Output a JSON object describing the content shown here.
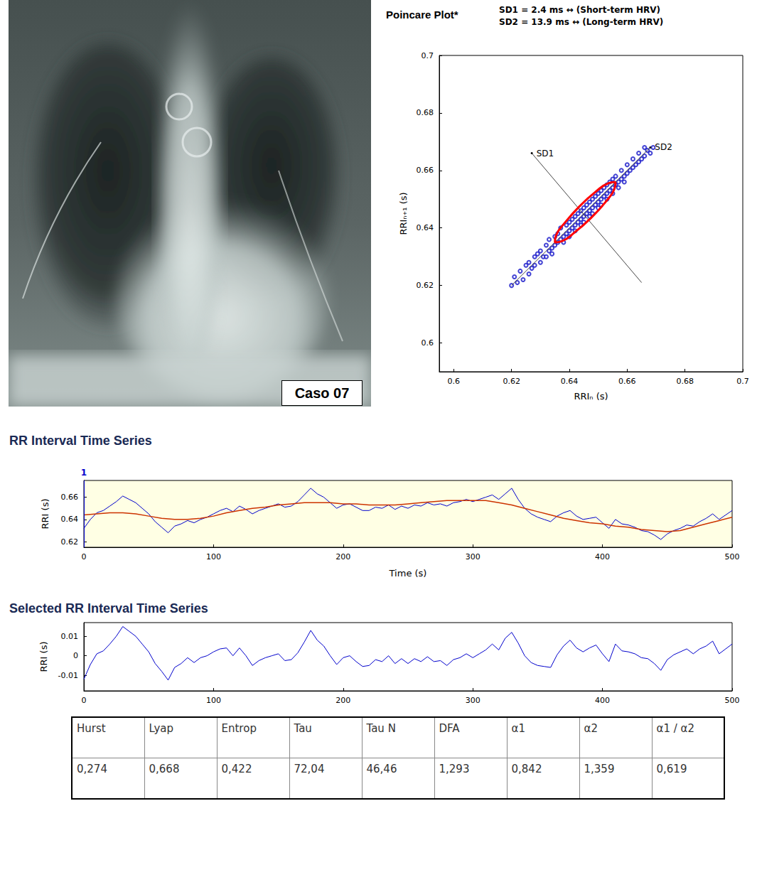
{
  "image": {
    "label": "Caso 07"
  },
  "chart_data": [
    {
      "type": "scatter",
      "title": "Poincare Plot*",
      "annotations": [
        "SD1 = 2.4 ms ↔ (Short-term HRV)",
        "SD2 = 13.9 ms ↔ (Long-term HRV)"
      ],
      "x_label": "RRIₙ (s)",
      "y_label": "RRIₙ₊₁ (s)",
      "x": [
        0.62,
        0.622,
        0.621,
        0.623,
        0.624,
        0.625,
        0.626,
        0.626,
        0.627,
        0.628,
        0.628,
        0.629,
        0.63,
        0.63,
        0.631,
        0.632,
        0.632,
        0.633,
        0.633,
        0.634,
        0.634,
        0.635,
        0.635,
        0.636,
        0.636,
        0.637,
        0.637,
        0.638,
        0.638,
        0.639,
        0.639,
        0.64,
        0.64,
        0.64,
        0.641,
        0.641,
        0.642,
        0.642,
        0.642,
        0.643,
        0.643,
        0.644,
        0.644,
        0.644,
        0.645,
        0.645,
        0.645,
        0.646,
        0.646,
        0.647,
        0.647,
        0.647,
        0.648,
        0.648,
        0.648,
        0.649,
        0.649,
        0.65,
        0.65,
        0.65,
        0.651,
        0.651,
        0.651,
        0.652,
        0.652,
        0.653,
        0.653,
        0.653,
        0.654,
        0.654,
        0.655,
        0.655,
        0.655,
        0.656,
        0.656,
        0.657,
        0.657,
        0.658,
        0.658,
        0.659,
        0.659,
        0.66,
        0.66,
        0.661,
        0.662,
        0.662,
        0.663,
        0.664,
        0.664,
        0.665,
        0.666,
        0.667,
        0.668,
        0.669,
        0.666
      ],
      "values": [
        0.62,
        0.621,
        0.623,
        0.625,
        0.622,
        0.627,
        0.624,
        0.628,
        0.626,
        0.63,
        0.627,
        0.631,
        0.628,
        0.632,
        0.63,
        0.634,
        0.63,
        0.632,
        0.636,
        0.633,
        0.631,
        0.637,
        0.634,
        0.638,
        0.635,
        0.636,
        0.64,
        0.637,
        0.635,
        0.641,
        0.638,
        0.642,
        0.639,
        0.637,
        0.64,
        0.643,
        0.641,
        0.644,
        0.639,
        0.642,
        0.645,
        0.643,
        0.641,
        0.646,
        0.644,
        0.647,
        0.642,
        0.645,
        0.648,
        0.646,
        0.644,
        0.649,
        0.647,
        0.65,
        0.645,
        0.648,
        0.651,
        0.649,
        0.647,
        0.652,
        0.65,
        0.653,
        0.648,
        0.651,
        0.654,
        0.652,
        0.65,
        0.655,
        0.653,
        0.656,
        0.654,
        0.652,
        0.657,
        0.655,
        0.658,
        0.656,
        0.654,
        0.657,
        0.66,
        0.658,
        0.656,
        0.659,
        0.662,
        0.66,
        0.661,
        0.664,
        0.662,
        0.663,
        0.666,
        0.664,
        0.665,
        0.667,
        0.666,
        0.668,
        0.668
      ],
      "color": "#1414c8",
      "marker": "circle",
      "xlim": [
        0.595,
        0.7
      ],
      "xticks": [
        0.6,
        0.62,
        0.64,
        0.66,
        0.68,
        0.7
      ],
      "ylim": [
        0.59,
        0.7
      ],
      "yticks": [
        0.6,
        0.62,
        0.64,
        0.66,
        0.68,
        0.7
      ],
      "grid": false,
      "ellipse": {
        "color": "#ff0000",
        "x": [
          0.656,
          0.6536,
          0.649,
          0.6435,
          0.6386,
          0.6354,
          0.635,
          0.6374,
          0.642,
          0.6475,
          0.6525,
          0.6556,
          0.656
        ],
        "y": [
          0.656,
          0.6556,
          0.6525,
          0.6475,
          0.642,
          0.6374,
          0.635,
          0.6354,
          0.6386,
          0.6435,
          0.649,
          0.6536,
          0.656
        ]
      },
      "reference_lines": [
        {
          "label": "SD1",
          "x": [
            0.627,
            0.665
          ],
          "y": [
            0.666,
            0.621
          ]
        },
        {
          "label": "SD2",
          "x": [
            0.62,
            0.668
          ],
          "y": [
            0.62,
            0.668
          ]
        }
      ]
    },
    {
      "type": "line",
      "title": "RR Interval Time Series",
      "x_label": "Time (s)",
      "y_label": "RRI (s)",
      "series": [
        {
          "color": "#0000cc",
          "x": [
            0,
            5,
            10,
            15,
            20,
            25,
            30,
            35,
            40,
            45,
            50,
            55,
            60,
            65,
            70,
            75,
            80,
            85,
            90,
            95,
            100,
            105,
            110,
            115,
            120,
            125,
            130,
            135,
            140,
            145,
            150,
            155,
            160,
            165,
            170,
            175,
            180,
            185,
            190,
            195,
            200,
            205,
            210,
            215,
            220,
            225,
            230,
            235,
            240,
            245,
            250,
            255,
            260,
            265,
            270,
            275,
            280,
            285,
            290,
            295,
            300,
            305,
            310,
            315,
            320,
            325,
            330,
            335,
            340,
            345,
            350,
            355,
            360,
            365,
            370,
            375,
            380,
            385,
            390,
            395,
            400,
            405,
            410,
            415,
            420,
            425,
            430,
            435,
            440,
            445,
            450,
            455,
            460,
            465,
            470,
            475,
            480,
            485,
            490,
            495,
            500
          ],
          "values": [
            0.632,
            0.64,
            0.646,
            0.648,
            0.652,
            0.656,
            0.661,
            0.658,
            0.655,
            0.65,
            0.645,
            0.638,
            0.633,
            0.628,
            0.634,
            0.636,
            0.639,
            0.637,
            0.64,
            0.642,
            0.645,
            0.648,
            0.65,
            0.647,
            0.652,
            0.649,
            0.645,
            0.648,
            0.65,
            0.652,
            0.654,
            0.651,
            0.652,
            0.656,
            0.662,
            0.668,
            0.663,
            0.66,
            0.655,
            0.65,
            0.653,
            0.654,
            0.651,
            0.648,
            0.648,
            0.651,
            0.65,
            0.653,
            0.649,
            0.652,
            0.65,
            0.653,
            0.652,
            0.655,
            0.653,
            0.654,
            0.652,
            0.655,
            0.656,
            0.658,
            0.656,
            0.658,
            0.66,
            0.662,
            0.658,
            0.663,
            0.668,
            0.658,
            0.65,
            0.645,
            0.642,
            0.64,
            0.638,
            0.643,
            0.646,
            0.648,
            0.643,
            0.64,
            0.641,
            0.642,
            0.637,
            0.632,
            0.64,
            0.636,
            0.635,
            0.633,
            0.63,
            0.629,
            0.626,
            0.622,
            0.627,
            0.63,
            0.632,
            0.635,
            0.634,
            0.638,
            0.641,
            0.645,
            0.64,
            0.644,
            0.648
          ]
        },
        {
          "color": "#cc3300",
          "x": [
            0,
            10,
            20,
            30,
            40,
            50,
            60,
            70,
            80,
            90,
            100,
            110,
            120,
            130,
            140,
            150,
            160,
            170,
            180,
            190,
            200,
            210,
            220,
            230,
            240,
            250,
            260,
            270,
            280,
            290,
            300,
            310,
            320,
            330,
            340,
            350,
            360,
            370,
            380,
            390,
            400,
            410,
            420,
            430,
            440,
            450,
            460,
            470,
            480,
            490,
            500
          ],
          "values": [
            0.644,
            0.645,
            0.646,
            0.646,
            0.645,
            0.643,
            0.641,
            0.64,
            0.64,
            0.641,
            0.643,
            0.646,
            0.648,
            0.65,
            0.651,
            0.653,
            0.654,
            0.655,
            0.655,
            0.655,
            0.654,
            0.654,
            0.653,
            0.653,
            0.653,
            0.654,
            0.655,
            0.656,
            0.657,
            0.657,
            0.657,
            0.657,
            0.655,
            0.653,
            0.65,
            0.647,
            0.644,
            0.641,
            0.639,
            0.637,
            0.636,
            0.634,
            0.633,
            0.631,
            0.63,
            0.629,
            0.63,
            0.633,
            0.636,
            0.639,
            0.642
          ]
        }
      ],
      "markers": [
        {
          "x": 0,
          "label": "1"
        }
      ],
      "xlim": [
        0,
        500
      ],
      "xticks": [
        0,
        100,
        200,
        300,
        400,
        500
      ],
      "ylim": [
        0.615,
        0.675
      ],
      "yticks": [
        0.62,
        0.64,
        0.66
      ],
      "grid": false
    },
    {
      "type": "line",
      "title": "Selected RR Interval Time Series",
      "y_label": "RRI (s)",
      "x": [
        0,
        5,
        10,
        15,
        20,
        25,
        30,
        35,
        40,
        45,
        50,
        55,
        60,
        65,
        70,
        75,
        80,
        85,
        90,
        95,
        100,
        105,
        110,
        115,
        120,
        125,
        130,
        135,
        140,
        145,
        150,
        155,
        160,
        165,
        170,
        175,
        180,
        185,
        190,
        195,
        200,
        205,
        210,
        215,
        220,
        225,
        230,
        235,
        240,
        245,
        250,
        255,
        260,
        265,
        270,
        275,
        280,
        285,
        290,
        295,
        300,
        305,
        310,
        315,
        320,
        325,
        330,
        335,
        340,
        345,
        350,
        355,
        360,
        365,
        370,
        375,
        380,
        385,
        390,
        395,
        400,
        405,
        410,
        415,
        420,
        425,
        430,
        435,
        440,
        445,
        450,
        455,
        460,
        465,
        470,
        475,
        480,
        485,
        490,
        495,
        500
      ],
      "values": [
        -0.012,
        -0.0045,
        0.001,
        0.0025,
        0.006,
        0.01,
        0.015,
        0.0125,
        0.01,
        0.006,
        0.002,
        -0.004,
        -0.008,
        -0.0125,
        -0.006,
        -0.004,
        -0.001,
        -0.0035,
        -0.001,
        0,
        0.002,
        0.0035,
        0.004,
        0,
        0.004,
        0,
        -0.005,
        -0.0025,
        -0.001,
        0,
        0.001,
        -0.0025,
        -0.002,
        0.0015,
        0.007,
        0.013,
        0.008,
        0.005,
        0,
        -0.0045,
        -0.001,
        0,
        -0.003,
        -0.0055,
        -0.005,
        -0.002,
        -0.003,
        0,
        -0.004,
        -0.0015,
        -0.004,
        -0.0015,
        -0.003,
        -0.0005,
        -0.003,
        -0.0025,
        -0.005,
        -0.002,
        -0.001,
        0.001,
        -0.001,
        0.001,
        0.003,
        0.006,
        0.003,
        0.009,
        0.012,
        0.0065,
        0,
        -0.0035,
        -0.005,
        -0.0055,
        -0.006,
        0.0005,
        0.005,
        0.008,
        0.004,
        0.002,
        0.004,
        0.0055,
        0.001,
        -0.003,
        0.006,
        0.0025,
        0.002,
        0.001,
        -0.001,
        -0.0015,
        -0.004,
        -0.0075,
        -0.002,
        0.0005,
        0.002,
        0.0035,
        0.001,
        0.0035,
        0.005,
        0.0075,
        0.001,
        0.0035,
        0.006
      ],
      "color": "#0000cc",
      "xlim": [
        0,
        500
      ],
      "xticks": [
        0,
        100,
        200,
        300,
        400,
        500
      ],
      "ylim": [
        -0.018,
        0.017
      ],
      "yticks": [
        -0.01,
        0,
        0.01
      ],
      "grid": false
    }
  ],
  "table": {
    "header": [
      "Hurst",
      "Lyap",
      "Entrop",
      "Tau",
      "Tau N",
      "DFA",
      "α1",
      "α2",
      "α1 / α2"
    ],
    "rows": [
      [
        "0,274",
        "0,668",
        "0,422",
        "72,04",
        "46,46",
        "1,293",
        "0,842",
        "1,359",
        "0,619"
      ]
    ]
  }
}
